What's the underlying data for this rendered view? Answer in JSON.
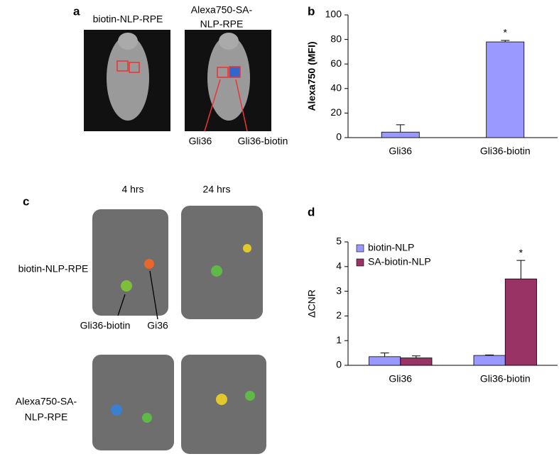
{
  "figure": {
    "panel_a": "a",
    "panel_b": "b",
    "panel_c": "c",
    "panel_d": "d",
    "a_left_title": "biotin-NLP-RPE",
    "a_right_title": [
      "Alexa750-SA-",
      "NLP-RPE"
    ],
    "a_label_gli36": "Gli36",
    "a_label_gli36_biotin": "Gli36-biotin",
    "c_col_1": "4 hrs",
    "c_col_2": "24 hrs",
    "c_row_1": "biotin-NLP-RPE",
    "c_row_2": [
      "Alexa750-SA-",
      "NLP-RPE"
    ],
    "c_label_gli36_biotin": "Gli36-biotin",
    "c_label_gi36": "Gi36"
  },
  "chart_data": [
    {
      "type": "bar",
      "ylabel": "Alexa750 (MFI)",
      "categories": [
        "Gli36",
        "Gli36-biotin"
      ],
      "values": [
        4.5,
        78
      ],
      "errors": [
        6,
        1.2
      ],
      "color": "#9999ff",
      "annotation": "*",
      "ylim": [
        0,
        100
      ],
      "yticks": [
        0,
        20,
        40,
        60,
        80,
        100
      ]
    },
    {
      "type": "bar",
      "ylabel": "ΔCNR",
      "categories": [
        "Gli36",
        "Gli36-biotin"
      ],
      "series": [
        {
          "name": "biotin-NLP",
          "color": "#9999ff",
          "values": [
            0.35,
            0.4
          ],
          "errors": [
            0.15,
            0.02
          ]
        },
        {
          "name": "SA-biotin-NLP",
          "color": "#993366",
          "values": [
            0.3,
            3.5
          ],
          "errors": [
            0.08,
            0.75
          ]
        }
      ],
      "annotation": "*",
      "legend": "top-left",
      "ylim": [
        0,
        5
      ],
      "yticks": [
        0,
        1,
        2,
        3,
        4,
        5
      ]
    }
  ]
}
